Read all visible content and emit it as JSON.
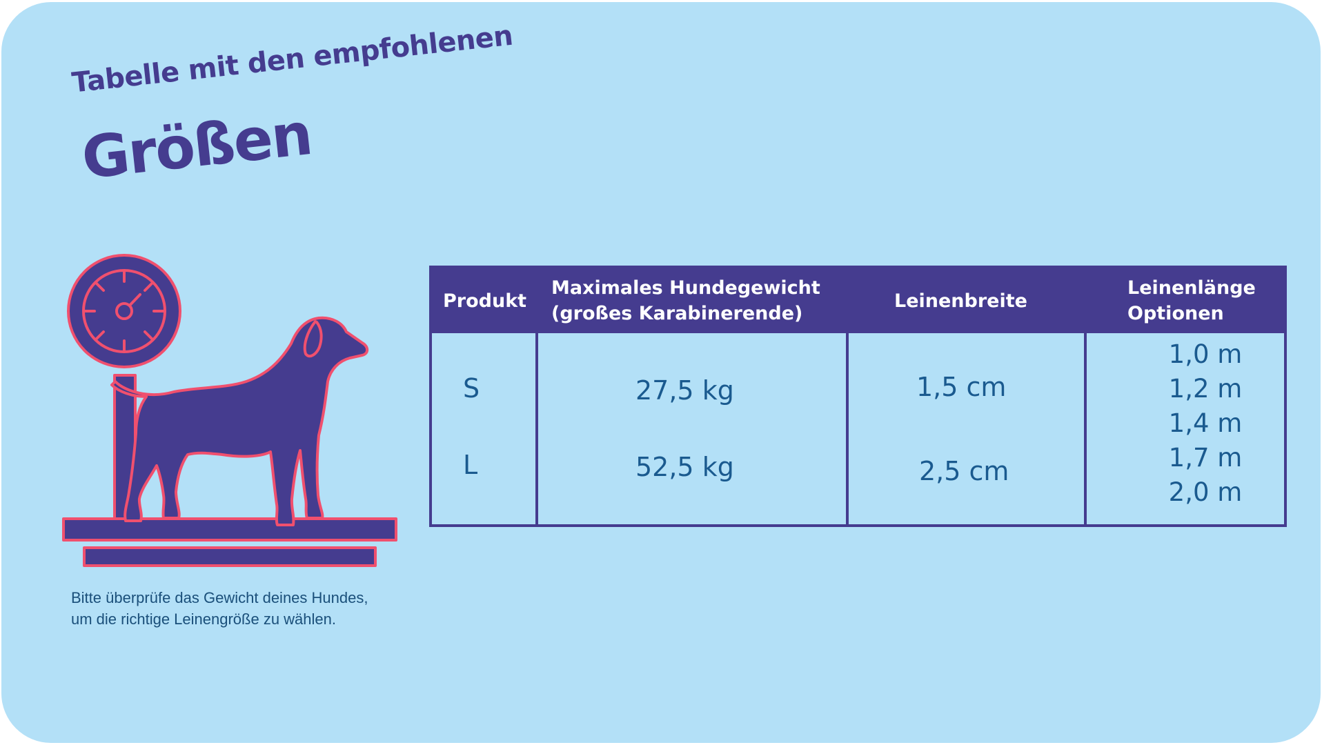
{
  "title": {
    "line1": "Tabelle mit den empfohlenen",
    "line2": "Größen"
  },
  "note": {
    "line1": "Bitte überprüfe das Gewicht deines Hundes,",
    "line2": "um die richtige Leinengröße zu wählen."
  },
  "illustration": {
    "icon": "dog-on-scale-icon",
    "colors": {
      "fill": "#453c8f",
      "outline": "#f0506e"
    }
  },
  "table": {
    "headers": {
      "product": "Produkt",
      "max_weight_line1": "Maximales Hundegewicht",
      "max_weight_line2": "(großes Karabinerende)",
      "width": "Leinenbreite",
      "length_line1": "Leinenlänge",
      "length_line2": "Optionen"
    },
    "rows": [
      {
        "product": "S",
        "max_weight": "27,5 kg",
        "width": "1,5 cm"
      },
      {
        "product": "L",
        "max_weight": "52,5 kg",
        "width": "2,5 cm"
      }
    ],
    "length_options": [
      "1,0 m",
      "1,2 m",
      "1,4 m",
      "1,7 m",
      "2,0 m"
    ]
  },
  "colors": {
    "background": "#b3e0f7",
    "primary": "#453c8f",
    "accent": "#f0506e",
    "text": "#1a5a8f"
  }
}
